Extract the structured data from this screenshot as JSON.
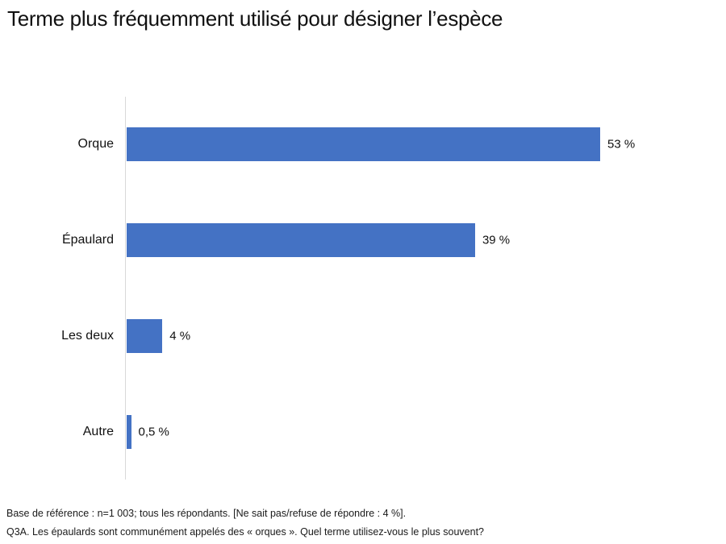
{
  "title": "Terme plus fréquemment utilisé pour désigner l’espèce",
  "chart_data": {
    "type": "bar",
    "orientation": "horizontal",
    "title": "Terme plus fréquemment utilisé pour désigner l’espèce",
    "categories": [
      "Orque",
      "Épaulard",
      "Les deux",
      "Autre"
    ],
    "values": [
      53,
      39,
      4,
      0.5
    ],
    "value_labels": [
      "53 %",
      "39 %",
      "4 %",
      "0,5 %"
    ],
    "xlabel": "",
    "ylabel": "",
    "xlim": [
      0,
      63.6
    ],
    "grid": false,
    "legend": false,
    "bar_color": "#4472c4",
    "axis_color": "#d9d9d9"
  },
  "footer": {
    "line1": "Base de référence : n=1 003;  tous les répondants. [Ne sait pas/refuse de répondre : 4  %].",
    "line2": "Q3A.  Les épaulards sont communément appelés des «  orques ». Quel terme utilisez-vous le plus souvent?"
  }
}
